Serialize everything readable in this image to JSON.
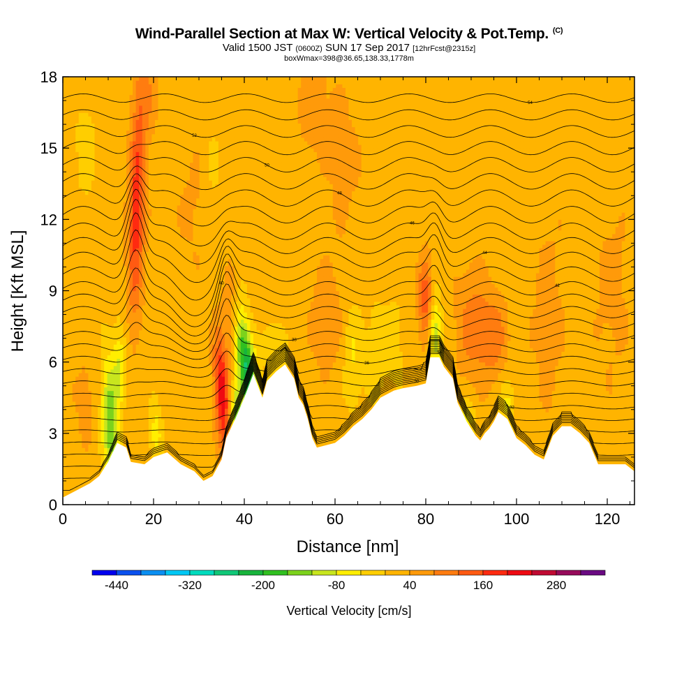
{
  "header": {
    "title": "Wind-Parallel Section at Max W: Vertical Velocity & Pot.Temp.",
    "copyright": "(C)",
    "valid_pre": "Valid 1500 JST",
    "valid_z": "(0600Z)",
    "valid_post": "SUN 17 Sep 2017",
    "forecast": "[12hrFcst@2315z]",
    "box_info": "boxWmax=398@36.65,138.33,1778m"
  },
  "chart_data": {
    "type": "heatmap",
    "xlabel": "Distance [nm]",
    "ylabel": "Height [Kft MSL]",
    "xlim": [
      0,
      126
    ],
    "ylim": [
      0,
      18
    ],
    "x_ticks": [
      0,
      20,
      40,
      60,
      80,
      100,
      120
    ],
    "y_ticks": [
      0,
      3,
      6,
      9,
      12,
      15,
      18
    ],
    "colorbar": {
      "title": "Vertical Velocity [cm/s]",
      "min": -480,
      "max": 360,
      "step": 40,
      "tick_labels": [
        "-440",
        "-320",
        "-200",
        "-80",
        "40",
        "160",
        "280"
      ],
      "tick_values": [
        -440,
        -320,
        -200,
        -80,
        40,
        160,
        280
      ],
      "colors": [
        "#0000ee",
        "#0a50ee",
        "#0a8ff2",
        "#00c8f5",
        "#00dcbe",
        "#10c878",
        "#18b43c",
        "#30c020",
        "#7cd21c",
        "#c8e61e",
        "#ffee00",
        "#ffce00",
        "#ffb400",
        "#ff9a0a",
        "#ff7c10",
        "#ff5a12",
        "#ff2a10",
        "#ee0a12",
        "#c00a32",
        "#960a5a",
        "#6a0a82"
      ]
    },
    "terrain": [
      {
        "x": 0,
        "h": 0.3
      },
      {
        "x": 3,
        "h": 0.6
      },
      {
        "x": 6,
        "h": 0.9
      },
      {
        "x": 8,
        "h": 1.2
      },
      {
        "x": 10,
        "h": 1.8
      },
      {
        "x": 12,
        "h": 2.6
      },
      {
        "x": 14,
        "h": 2.4
      },
      {
        "x": 15,
        "h": 1.8
      },
      {
        "x": 18,
        "h": 1.7
      },
      {
        "x": 20,
        "h": 2.0
      },
      {
        "x": 23,
        "h": 2.2
      },
      {
        "x": 26,
        "h": 1.7
      },
      {
        "x": 29,
        "h": 1.4
      },
      {
        "x": 31,
        "h": 1.0
      },
      {
        "x": 33,
        "h": 1.2
      },
      {
        "x": 35,
        "h": 1.9
      },
      {
        "x": 36,
        "h": 2.8
      },
      {
        "x": 38,
        "h": 3.6
      },
      {
        "x": 40,
        "h": 4.5
      },
      {
        "x": 42,
        "h": 5.5
      },
      {
        "x": 44,
        "h": 4.5
      },
      {
        "x": 45,
        "h": 5.2
      },
      {
        "x": 47,
        "h": 5.6
      },
      {
        "x": 49,
        "h": 5.9
      },
      {
        "x": 51,
        "h": 5.3
      },
      {
        "x": 52,
        "h": 4.5
      },
      {
        "x": 53,
        "h": 4.2
      },
      {
        "x": 54,
        "h": 3.6
      },
      {
        "x": 55,
        "h": 2.8
      },
      {
        "x": 56,
        "h": 2.4
      },
      {
        "x": 60,
        "h": 2.6
      },
      {
        "x": 62,
        "h": 2.9
      },
      {
        "x": 64,
        "h": 3.3
      },
      {
        "x": 66,
        "h": 3.6
      },
      {
        "x": 68,
        "h": 4.0
      },
      {
        "x": 70,
        "h": 4.5
      },
      {
        "x": 73,
        "h": 4.8
      },
      {
        "x": 75,
        "h": 4.9
      },
      {
        "x": 78,
        "h": 5.0
      },
      {
        "x": 80,
        "h": 5.1
      },
      {
        "x": 81,
        "h": 6.2
      },
      {
        "x": 83,
        "h": 6.2
      },
      {
        "x": 84,
        "h": 5.8
      },
      {
        "x": 86,
        "h": 5.3
      },
      {
        "x": 87,
        "h": 4.3
      },
      {
        "x": 89,
        "h": 3.5
      },
      {
        "x": 91,
        "h": 2.9
      },
      {
        "x": 92,
        "h": 2.7
      },
      {
        "x": 93,
        "h": 3.0
      },
      {
        "x": 94,
        "h": 3.2
      },
      {
        "x": 95,
        "h": 3.5
      },
      {
        "x": 96,
        "h": 3.9
      },
      {
        "x": 98,
        "h": 3.6
      },
      {
        "x": 100,
        "h": 2.8
      },
      {
        "x": 102,
        "h": 2.5
      },
      {
        "x": 104,
        "h": 2.1
      },
      {
        "x": 106,
        "h": 1.9
      },
      {
        "x": 108,
        "h": 2.9
      },
      {
        "x": 110,
        "h": 3.3
      },
      {
        "x": 112,
        "h": 3.3
      },
      {
        "x": 114,
        "h": 3.0
      },
      {
        "x": 116,
        "h": 2.6
      },
      {
        "x": 118,
        "h": 1.7
      },
      {
        "x": 124,
        "h": 1.7
      },
      {
        "x": 126,
        "h": 1.4
      }
    ],
    "w_features": [
      {
        "x": 16.3,
        "y": 12.5,
        "sx": 1.3,
        "sy": 3.2,
        "tilt": 0.12,
        "amp": 170
      },
      {
        "x": 18.5,
        "y": 17.3,
        "sx": 1.8,
        "sy": 1.3,
        "tilt": 0,
        "amp": 55
      },
      {
        "x": 35,
        "y": 4.7,
        "sx": 1.1,
        "sy": 1.7,
        "tilt": -0.25,
        "amp": 210
      },
      {
        "x": 40.5,
        "y": 5.8,
        "sx": 1.4,
        "sy": 1.6,
        "tilt": -0.6,
        "amp": -260
      },
      {
        "x": 38.5,
        "y": 3.6,
        "sx": 0.9,
        "sy": 1.0,
        "tilt": -0.3,
        "amp": -170
      },
      {
        "x": 10.5,
        "y": 3.5,
        "sx": 1.3,
        "sy": 1.8,
        "tilt": -0.2,
        "amp": -180
      },
      {
        "x": 12.5,
        "y": 6.0,
        "sx": 1.0,
        "sy": 1.2,
        "tilt": 0,
        "amp": -90
      },
      {
        "x": 80,
        "y": 8.6,
        "sx": 1.2,
        "sy": 1.3,
        "tilt": 0,
        "amp": 130
      },
      {
        "x": 82,
        "y": 7.2,
        "sx": 1.0,
        "sy": 1.2,
        "tilt": 0,
        "amp": -140
      },
      {
        "x": 90,
        "y": 7.6,
        "sx": 2.5,
        "sy": 1.8,
        "tilt": 0,
        "amp": 75
      },
      {
        "x": 95,
        "y": 7.1,
        "sx": 2.2,
        "sy": 1.3,
        "tilt": 0,
        "amp": 85
      },
      {
        "x": 58,
        "y": 7.8,
        "sx": 2.5,
        "sy": 1.6,
        "tilt": 0,
        "amp": 55
      },
      {
        "x": 47,
        "y": 6.3,
        "sx": 1.6,
        "sy": 1.1,
        "tilt": 0,
        "amp": -60
      },
      {
        "x": 64,
        "y": 6.2,
        "sx": 1.5,
        "sy": 1.6,
        "tilt": 0,
        "amp": -60
      },
      {
        "x": 69,
        "y": 6.5,
        "sx": 1.5,
        "sy": 1.4,
        "tilt": 0,
        "amp": -50
      },
      {
        "x": 73,
        "y": 6.8,
        "sx": 1.5,
        "sy": 1.4,
        "tilt": 0,
        "amp": -40
      },
      {
        "x": 55,
        "y": 16.8,
        "sx": 2.5,
        "sy": 1.5,
        "tilt": 0,
        "amp": 50
      },
      {
        "x": 62,
        "y": 14.5,
        "sx": 3.0,
        "sy": 2.5,
        "tilt": 0,
        "amp": 35
      },
      {
        "x": 107,
        "y": 8.0,
        "sx": 3.0,
        "sy": 3.5,
        "tilt": 0,
        "amp": 35
      },
      {
        "x": 121,
        "y": 9.0,
        "sx": 3.0,
        "sy": 3.0,
        "tilt": 0,
        "amp": 35
      },
      {
        "x": 29,
        "y": 12.5,
        "sx": 3.0,
        "sy": 2.0,
        "tilt": 0,
        "amp": 30
      },
      {
        "x": 5,
        "y": 4.5,
        "sx": 2.0,
        "sy": 1.6,
        "tilt": 0,
        "amp": 35
      },
      {
        "x": 5,
        "y": 15.0,
        "sx": 1.5,
        "sy": 1.5,
        "tilt": 0,
        "amp": -45
      },
      {
        "x": 33,
        "y": 14.0,
        "sx": 1.5,
        "sy": 1.5,
        "tilt": 0,
        "amp": -30
      },
      {
        "x": 20.5,
        "y": 3.0,
        "sx": 1.0,
        "sy": 0.9,
        "tilt": 0,
        "amp": -80
      },
      {
        "x": 89,
        "y": 3.6,
        "sx": 1.2,
        "sy": 0.6,
        "tilt": 0,
        "amp": -90
      },
      {
        "x": 98,
        "y": 4.3,
        "sx": 1.2,
        "sy": 0.8,
        "tilt": 0,
        "amp": -70
      },
      {
        "x": 37,
        "y": 8.0,
        "sx": 1.2,
        "sy": 1.5,
        "tilt": 0,
        "amp": 60
      }
    ],
    "theta_contours": [
      {
        "base": 0.6,
        "label": ""
      },
      {
        "base": 1.1,
        "label": ""
      },
      {
        "base": 1.6,
        "label": ""
      },
      {
        "base": 2.1,
        "label": ""
      },
      {
        "base": 2.6,
        "label": "30"
      },
      {
        "base": 3.1,
        "label": ""
      },
      {
        "base": 3.6,
        "label": ""
      },
      {
        "base": 4.1,
        "label": "32"
      },
      {
        "base": 4.6,
        "label": ""
      },
      {
        "base": 5.1,
        "label": "34"
      },
      {
        "base": 5.6,
        "label": ""
      },
      {
        "base": 6.1,
        "label": "36"
      },
      {
        "base": 6.6,
        "label": ""
      },
      {
        "base": 7.1,
        "label": "38"
      },
      {
        "base": 7.6,
        "label": ""
      },
      {
        "base": 8.1,
        "label": "40"
      },
      {
        "base": 8.6,
        "label": ""
      },
      {
        "base": 9.1,
        "label": "42"
      },
      {
        "base": 9.7,
        "label": ""
      },
      {
        "base": 10.3,
        "label": "44"
      },
      {
        "base": 10.9,
        "label": ""
      },
      {
        "base": 11.5,
        "label": "46"
      },
      {
        "base": 12.2,
        "label": ""
      },
      {
        "base": 12.9,
        "label": "48"
      },
      {
        "base": 13.6,
        "label": ""
      },
      {
        "base": 14.3,
        "label": "50"
      },
      {
        "base": 15.0,
        "label": ""
      },
      {
        "base": 15.7,
        "label": "52"
      },
      {
        "base": 16.4,
        "label": ""
      },
      {
        "base": 17.1,
        "label": "54"
      }
    ]
  }
}
